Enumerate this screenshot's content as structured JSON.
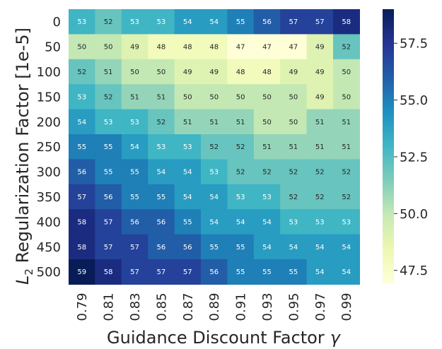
{
  "chart_data": {
    "type": "heatmap",
    "x_label_text": "Guidance Discount Factor",
    "x_label_symbol": "γ",
    "y_label_symbol": "L",
    "y_label_subscript": "2",
    "y_label_text": " Regularization Factor [1e-5]",
    "x_categories": [
      "0.79",
      "0.81",
      "0.83",
      "0.85",
      "0.87",
      "0.89",
      "0.91",
      "0.93",
      "0.95",
      "0.97",
      "0.99"
    ],
    "y_categories": [
      "0",
      "50",
      "100",
      "150",
      "200",
      "250",
      "300",
      "350",
      "400",
      "450",
      "500"
    ],
    "values": [
      [
        53,
        52,
        53,
        53,
        54,
        54,
        55,
        56,
        57,
        57,
        58
      ],
      [
        50,
        50,
        49,
        48,
        48,
        48,
        47,
        47,
        47,
        49,
        52
      ],
      [
        52,
        51,
        50,
        50,
        49,
        49,
        48,
        48,
        49,
        49,
        50
      ],
      [
        53,
        52,
        51,
        51,
        50,
        50,
        50,
        50,
        50,
        49,
        50
      ],
      [
        54,
        53,
        53,
        52,
        51,
        51,
        51,
        50,
        50,
        51,
        51
      ],
      [
        55,
        55,
        54,
        53,
        53,
        52,
        52,
        51,
        51,
        51,
        51
      ],
      [
        56,
        55,
        55,
        54,
        54,
        53,
        52,
        52,
        52,
        52,
        52
      ],
      [
        57,
        56,
        55,
        55,
        54,
        54,
        53,
        53,
        52,
        52,
        52
      ],
      [
        58,
        57,
        56,
        56,
        55,
        54,
        54,
        54,
        53,
        53,
        53
      ],
      [
        58,
        57,
        57,
        56,
        56,
        55,
        55,
        54,
        54,
        54,
        54
      ],
      [
        59,
        58,
        57,
        57,
        57,
        56,
        55,
        55,
        55,
        54,
        54
      ]
    ],
    "colormap": "YlGnBu",
    "color_range": [
      46.9,
      59.0
    ],
    "colorbar_ticks": [
      "47.5",
      "50.0",
      "52.5",
      "55.0",
      "57.5"
    ],
    "colorbar_tick_values": [
      47.5,
      50.0,
      52.5,
      55.0,
      57.5
    ]
  }
}
